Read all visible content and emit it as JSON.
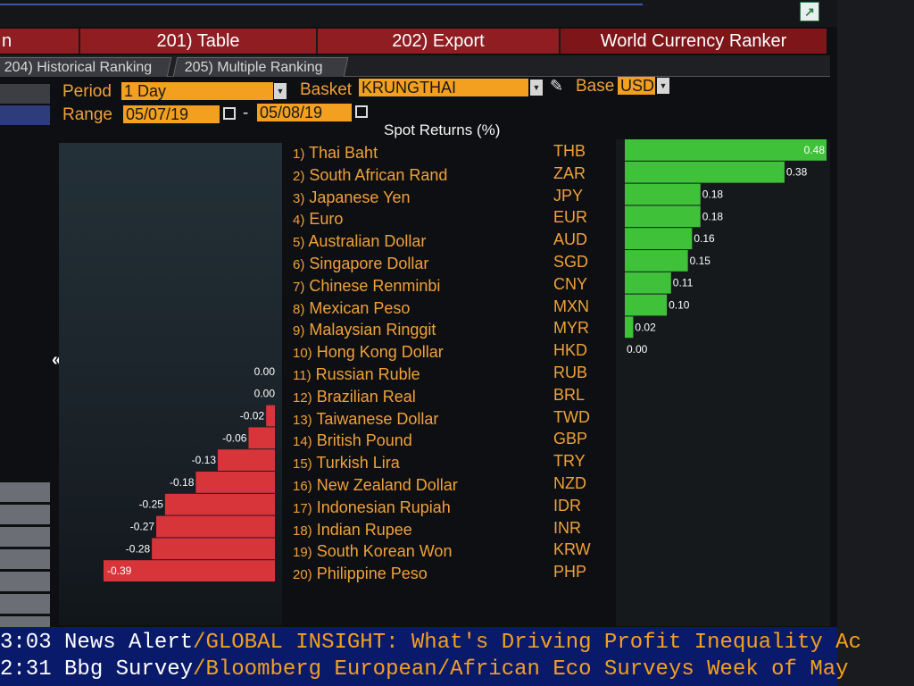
{
  "window": {
    "menu": {
      "left_label": "n",
      "table_label": "201) Table",
      "export_label": "202) Export",
      "title": "World Currency Ranker"
    },
    "tabs": [
      {
        "label": "204) Historical Ranking"
      },
      {
        "label": "205) Multiple Ranking"
      }
    ]
  },
  "controls": {
    "period_label": "Period",
    "period_value": "1 Day",
    "basket_label": "Basket",
    "basket_value": "KRUNGTHAI",
    "base_label": "Base",
    "base_value": "USD",
    "range_label": "Range",
    "range_from": "05/07/19",
    "range_to": "05/08/19",
    "range_sep": "-"
  },
  "chart_data": {
    "type": "bar",
    "title": "Spot Returns (%)",
    "rows": [
      {
        "rank": "1)",
        "name": "Thai Baht",
        "code": "THB",
        "value": 0.48,
        "label": "0.48"
      },
      {
        "rank": "2)",
        "name": "South African Rand",
        "code": "ZAR",
        "value": 0.38,
        "label": "0.38"
      },
      {
        "rank": "3)",
        "name": "Japanese Yen",
        "code": "JPY",
        "value": 0.18,
        "label": "0.18"
      },
      {
        "rank": "4)",
        "name": "Euro",
        "code": "EUR",
        "value": 0.18,
        "label": "0.18"
      },
      {
        "rank": "5)",
        "name": "Australian Dollar",
        "code": "AUD",
        "value": 0.16,
        "label": "0.16"
      },
      {
        "rank": "6)",
        "name": "Singapore Dollar",
        "code": "SGD",
        "value": 0.15,
        "label": "0.15"
      },
      {
        "rank": "7)",
        "name": "Chinese Renminbi",
        "code": "CNY",
        "value": 0.11,
        "label": "0.11"
      },
      {
        "rank": "8)",
        "name": "Mexican Peso",
        "code": "MXN",
        "value": 0.1,
        "label": "0.10"
      },
      {
        "rank": "9)",
        "name": "Malaysian Ringgit",
        "code": "MYR",
        "value": 0.02,
        "label": "0.02"
      },
      {
        "rank": "10)",
        "name": "Hong Kong Dollar",
        "code": "HKD",
        "value": 0.0,
        "label": "0.00"
      },
      {
        "rank": "11)",
        "name": "Russian Ruble",
        "code": "RUB",
        "value": 0.0,
        "label": "0.00"
      },
      {
        "rank": "12)",
        "name": "Brazilian Real",
        "code": "BRL",
        "value": 0.0,
        "label": "0.00"
      },
      {
        "rank": "13)",
        "name": "Taiwanese Dollar",
        "code": "TWD",
        "value": -0.02,
        "label": "-0.02"
      },
      {
        "rank": "14)",
        "name": "British Pound",
        "code": "GBP",
        "value": -0.06,
        "label": "-0.06"
      },
      {
        "rank": "15)",
        "name": "Turkish Lira",
        "code": "TRY",
        "value": -0.13,
        "label": "-0.13"
      },
      {
        "rank": "16)",
        "name": "New Zealand Dollar",
        "code": "NZD",
        "value": -0.18,
        "label": "-0.18"
      },
      {
        "rank": "17)",
        "name": "Indonesian Rupiah",
        "code": "IDR",
        "value": -0.25,
        "label": "-0.25"
      },
      {
        "rank": "18)",
        "name": "Indian Rupee",
        "code": "INR",
        "value": -0.27,
        "label": "-0.27"
      },
      {
        "rank": "19)",
        "name": "South Korean Won",
        "code": "KRW",
        "value": -0.28,
        "label": "-0.28"
      },
      {
        "rank": "20)",
        "name": "Philippine Peso",
        "code": "PHP",
        "value": -0.39,
        "label": "-0.39"
      }
    ],
    "colors": {
      "positive": "#3fc23a",
      "negative": "#d8353a"
    }
  },
  "ticker": [
    {
      "time": "3:03",
      "source": "News Alert",
      "sep": "/",
      "text": "GLOBAL INSIGHT: What's Driving Profit Inequality Ac"
    },
    {
      "time": "2:31",
      "source": "Bbg Survey",
      "sep": "/",
      "text": "Bloomberg European/African Eco Surveys Week of May"
    }
  ],
  "icons": [
    "corner-export-icon",
    "pencil-icon",
    "calendar-icon",
    "dropdown-arrow-icon",
    "collapse-left-icon"
  ]
}
